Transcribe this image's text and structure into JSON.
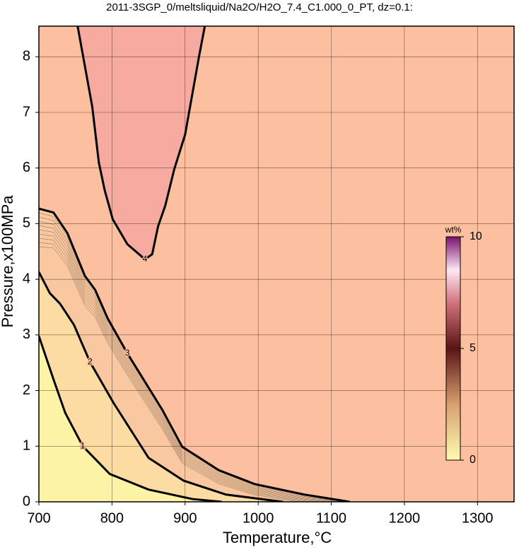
{
  "chart_data": {
    "type": "contour",
    "title": "2011-3SGP_0/meltsliquid/Na2O/H2O_7.4_C1.000_0_PT, dz=0.1:",
    "x_label": "Temperature,°C",
    "y_label": "Pressure,x100MPa",
    "xlim": [
      700,
      1350
    ],
    "ylim": [
      0,
      8.55
    ],
    "xticks": [
      700,
      800,
      900,
      1000,
      1100,
      1200,
      1300
    ],
    "yticks": [
      0,
      1,
      2,
      3,
      4,
      5,
      6,
      7,
      8
    ],
    "grid": true,
    "background_color": "#fcbf9f",
    "contours": [
      {
        "level": 3,
        "color": "#f9c8a0",
        "x": [
          700,
          720,
          739,
          763,
          777,
          794,
          821,
          869,
          896,
          946,
          995,
          1063,
          1111,
          1125
        ],
        "y": [
          5.27,
          5.2,
          4.83,
          4.06,
          3.81,
          3.3,
          2.67,
          1.65,
          0.99,
          0.57,
          0.32,
          0.13,
          0.03,
          0
        ]
      },
      {
        "level": 2,
        "color": "#fcdca3",
        "x": [
          700,
          715,
          729,
          748,
          770,
          802,
          850,
          898,
          956,
          1034
        ],
        "y": [
          4.13,
          3.75,
          3.56,
          3.18,
          2.51,
          1.78,
          0.79,
          0.38,
          0.13,
          0
        ]
      },
      {
        "level": 1,
        "color": "#fdf3a6",
        "x": [
          700,
          720,
          736,
          760,
          797,
          850,
          910,
          950
        ],
        "y": [
          2.98,
          2.2,
          1.6,
          1.0,
          0.5,
          0.22,
          0.05,
          0
        ]
      },
      {
        "level": 4,
        "color": "#f7aaa0",
        "x": [
          753,
          773,
          782,
          790,
          801,
          821,
          845,
          855,
          863,
          873,
          885,
          900,
          919,
          927
        ],
        "y": [
          8.55,
          7.1,
          6.1,
          5.6,
          5.08,
          4.63,
          4.36,
          4.45,
          4.95,
          5.33,
          5.97,
          6.6,
          8.0,
          8.55
        ]
      }
    ],
    "colorbar": {
      "label": "wt%",
      "lim": [
        0,
        10
      ],
      "ticks": [
        0,
        5,
        10
      ]
    }
  }
}
